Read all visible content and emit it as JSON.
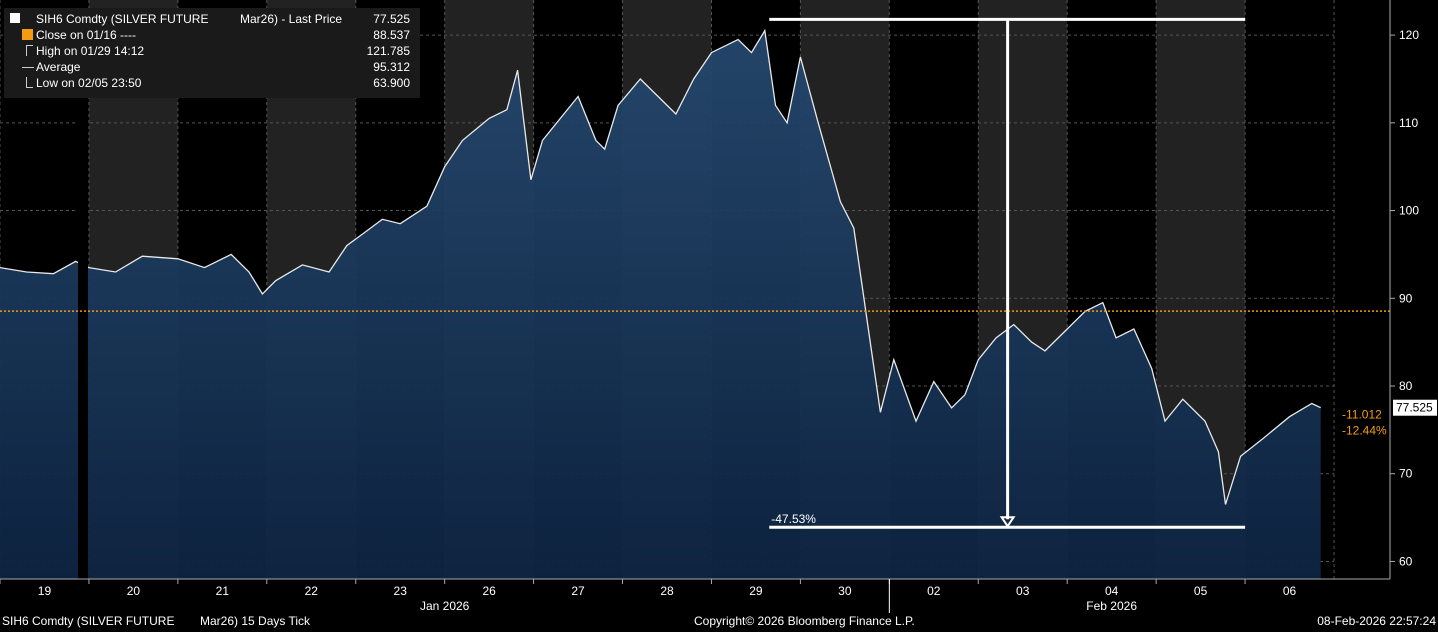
{
  "legend": {
    "title": "SIH6 Comdty (SILVER FUTURE",
    "contract": "Mar26) - Last Price",
    "last_value": "77.525",
    "rows": [
      {
        "label": "Close on 01/16 ----",
        "value": "88.537",
        "color": "#f39c12"
      },
      {
        "label": "High on 01/29 14:12",
        "value": "121.785",
        "color": "#cccccc"
      },
      {
        "label": "Average",
        "value": "95.312",
        "color": "#cccccc"
      },
      {
        "label": "Low on 02/05 23:50",
        "value": "63.900",
        "color": "#cccccc"
      }
    ]
  },
  "footer": {
    "left": "SIH6 Comdty (SILVER FUTURE",
    "left2": "Mar26) 15 Days Tick",
    "center": "Copyright© 2026 Bloomberg Finance L.P.",
    "right": "08-Feb-2026 22:57:24"
  },
  "chart_data": {
    "type": "area",
    "ylim": [
      58,
      124
    ],
    "yticks": [
      "120",
      "110",
      "100",
      "90",
      "80",
      "70",
      "60"
    ],
    "days": [
      {
        "label": "19",
        "shade": "dark"
      },
      {
        "label": "20",
        "shade": "light"
      },
      {
        "label": "21",
        "shade": "dark"
      },
      {
        "label": "22",
        "shade": "light"
      },
      {
        "label": "23",
        "shade": "dark"
      },
      {
        "label": "26",
        "shade": "light"
      },
      {
        "label": "27",
        "shade": "dark"
      },
      {
        "label": "28",
        "shade": "light"
      },
      {
        "label": "29",
        "shade": "dark"
      },
      {
        "label": "30",
        "shade": "light"
      },
      {
        "label": "02",
        "shade": "dark"
      },
      {
        "label": "03",
        "shade": "light"
      },
      {
        "label": "04",
        "shade": "dark"
      },
      {
        "label": "05",
        "shade": "light"
      },
      {
        "label": "06",
        "shade": "dark"
      }
    ],
    "months": [
      "Jan 2026",
      "Feb 2026"
    ],
    "reference_close": 88.537,
    "high": 121.785,
    "low": 63.9,
    "last_price": "77.525",
    "change_abs": "-11.012",
    "change_pct": "-12.44%",
    "drawdown_label": "-47.53%",
    "price_path": [
      [
        0.0,
        93.5
      ],
      [
        0.3,
        93.0
      ],
      [
        0.6,
        92.8
      ],
      [
        0.85,
        94.2
      ],
      [
        1.0,
        93.5
      ],
      [
        1.3,
        93.0
      ],
      [
        1.6,
        94.8
      ],
      [
        2.0,
        94.5
      ],
      [
        2.3,
        93.5
      ],
      [
        2.6,
        95.0
      ],
      [
        2.8,
        93.0
      ],
      [
        2.95,
        90.5
      ],
      [
        3.1,
        92.0
      ],
      [
        3.4,
        93.8
      ],
      [
        3.7,
        93.0
      ],
      [
        3.9,
        96.0
      ],
      [
        4.1,
        97.5
      ],
      [
        4.3,
        99.0
      ],
      [
        4.5,
        98.5
      ],
      [
        4.8,
        100.5
      ],
      [
        5.0,
        105.0
      ],
      [
        5.2,
        108.0
      ],
      [
        5.5,
        110.5
      ],
      [
        5.7,
        111.5
      ],
      [
        5.82,
        116.0
      ],
      [
        5.97,
        103.5
      ],
      [
        6.1,
        108.0
      ],
      [
        6.3,
        110.5
      ],
      [
        6.5,
        113.0
      ],
      [
        6.7,
        108.0
      ],
      [
        6.8,
        107.0
      ],
      [
        6.95,
        112.0
      ],
      [
        7.2,
        115.0
      ],
      [
        7.4,
        113.0
      ],
      [
        7.6,
        111.0
      ],
      [
        7.8,
        115.0
      ],
      [
        8.0,
        118.0
      ],
      [
        8.3,
        119.5
      ],
      [
        8.45,
        118.0
      ],
      [
        8.6,
        120.5
      ],
      [
        8.72,
        112.0
      ],
      [
        8.85,
        110.0
      ],
      [
        9.0,
        117.5
      ],
      [
        9.2,
        110.0
      ],
      [
        9.45,
        101.0
      ],
      [
        9.6,
        98.0
      ],
      [
        9.8,
        84.0
      ],
      [
        9.9,
        77.0
      ],
      [
        10.05,
        83.0
      ],
      [
        10.3,
        76.0
      ],
      [
        10.5,
        80.5
      ],
      [
        10.7,
        77.5
      ],
      [
        10.85,
        79.0
      ],
      [
        11.0,
        83.0
      ],
      [
        11.2,
        85.5
      ],
      [
        11.4,
        87.0
      ],
      [
        11.6,
        85.0
      ],
      [
        11.75,
        84.0
      ],
      [
        12.0,
        86.5
      ],
      [
        12.2,
        88.5
      ],
      [
        12.4,
        89.5
      ],
      [
        12.55,
        85.5
      ],
      [
        12.75,
        86.5
      ],
      [
        12.95,
        82.0
      ],
      [
        13.1,
        76.0
      ],
      [
        13.3,
        78.5
      ],
      [
        13.55,
        76.0
      ],
      [
        13.7,
        72.5
      ],
      [
        13.78,
        66.5
      ],
      [
        13.95,
        72.0
      ],
      [
        14.2,
        74.0
      ],
      [
        14.5,
        76.5
      ],
      [
        14.75,
        78.0
      ],
      [
        14.85,
        77.525
      ]
    ]
  }
}
